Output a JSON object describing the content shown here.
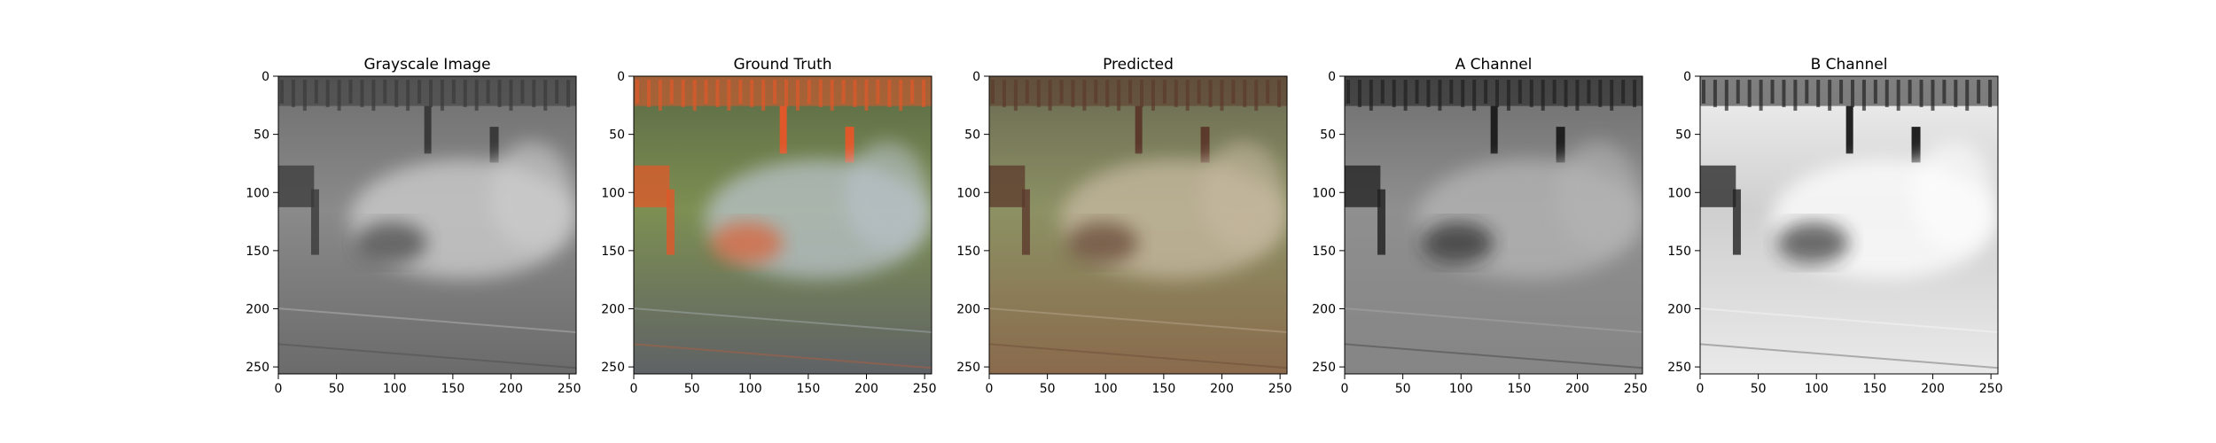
{
  "figure": {
    "background": "#ffffff"
  },
  "chart_data": [
    {
      "type": "image",
      "title": "Grayscale Image",
      "colormap": "grayscale",
      "xlim": [
        0,
        256
      ],
      "ylim": [
        256,
        0
      ],
      "xticks": [
        0,
        50,
        100,
        150,
        200,
        250
      ],
      "yticks": [
        0,
        50,
        100,
        150,
        200,
        250
      ],
      "scene_tone": {
        "top": "#6f6f6f",
        "mid": "#8a8a8a",
        "bottom": "#6b6b6b",
        "smoke": "#cfcfcf",
        "accent": "#3a3a3a"
      }
    },
    {
      "type": "image",
      "title": "Ground Truth",
      "colormap": "color",
      "xlim": [
        0,
        256
      ],
      "ylim": [
        256,
        0
      ],
      "xticks": [
        0,
        50,
        100,
        150,
        200,
        250
      ],
      "yticks": [
        0,
        50,
        100,
        150,
        200,
        250
      ],
      "scene_tone": {
        "top": "#5b6a46",
        "mid": "#7d8f52",
        "bottom": "#5f6266",
        "smoke": "#b9c2cb",
        "accent": "#e0582a"
      }
    },
    {
      "type": "image",
      "title": "Predicted",
      "colormap": "color",
      "xlim": [
        0,
        256
      ],
      "ylim": [
        256,
        0
      ],
      "xticks": [
        0,
        50,
        100,
        150,
        200,
        250
      ],
      "yticks": [
        0,
        50,
        100,
        150,
        200,
        250
      ],
      "scene_tone": {
        "top": "#6a6a52",
        "mid": "#8c9164",
        "bottom": "#8a6a4c",
        "smoke": "#c7b9a2",
        "accent": "#5b3a2c"
      }
    },
    {
      "type": "image",
      "title": "A Channel",
      "colormap": "grayscale",
      "xlim": [
        0,
        256
      ],
      "ylim": [
        256,
        0
      ],
      "xticks": [
        0,
        50,
        100,
        150,
        200,
        250
      ],
      "yticks": [
        0,
        50,
        100,
        150,
        200,
        250
      ],
      "scene_tone": {
        "top": "#6e6e6e",
        "mid": "#8f8f8f",
        "bottom": "#858585",
        "smoke": "#b5b5b5",
        "accent": "#1f1f1f"
      }
    },
    {
      "type": "image",
      "title": "B Channel",
      "colormap": "grayscale",
      "xlim": [
        0,
        256
      ],
      "ylim": [
        256,
        0
      ],
      "xticks": [
        0,
        50,
        100,
        150,
        200,
        250
      ],
      "yticks": [
        0,
        50,
        100,
        150,
        200,
        250
      ],
      "scene_tone": {
        "top": "#f0f0f0",
        "mid": "#cfcfcf",
        "bottom": "#e9e9e9",
        "smoke": "#ffffff",
        "accent": "#222222"
      }
    }
  ]
}
